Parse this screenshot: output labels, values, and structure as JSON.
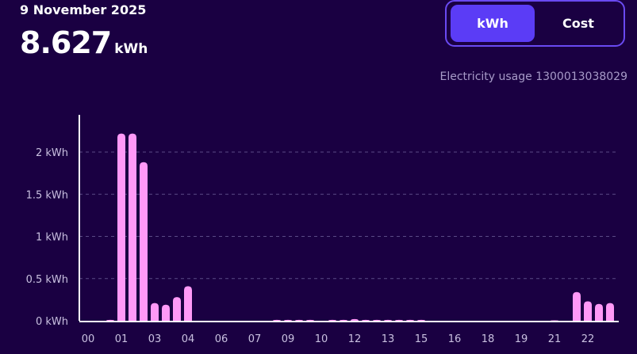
{
  "header": {
    "date": "9 November 2025",
    "total_value": "8.627",
    "total_unit": "kWh"
  },
  "toggle": {
    "options": [
      "kWh",
      "Cost"
    ],
    "selected": "kWh"
  },
  "meter_label": "Electricity usage 1300013038029",
  "colors": {
    "background": "#1a0042",
    "bar": "#ff99f7",
    "accent": "#5b3cf6"
  },
  "chart_data": {
    "type": "bar",
    "interval": "30 min",
    "x_tick_labels": [
      "00",
      "01",
      "03",
      "04",
      "06",
      "07",
      "09",
      "10",
      "12",
      "13",
      "15",
      "16",
      "18",
      "19",
      "21",
      "22"
    ],
    "y_tick_labels": [
      "0 kWh",
      "0.5 kWh",
      "1 kWh",
      "1.5 kWh",
      "2 kWh"
    ],
    "y_ticks": [
      0,
      0.5,
      1,
      1.5,
      2
    ],
    "ylim": [
      0,
      2.45
    ],
    "grid": true,
    "values": [
      0,
      0,
      0.01,
      2.22,
      2.22,
      1.88,
      0.21,
      0.19,
      0.28,
      0.41,
      0,
      0,
      0,
      0,
      0,
      0,
      0,
      0.01,
      0.01,
      0.01,
      0.01,
      0,
      0.01,
      0.01,
      0.02,
      0.01,
      0.01,
      0.01,
      0.01,
      0.01,
      0.01,
      0,
      0,
      0,
      0,
      0,
      0,
      0,
      0,
      0,
      0,
      0,
      0.005,
      0,
      0.34,
      0.23,
      0.2,
      0.21
    ]
  }
}
